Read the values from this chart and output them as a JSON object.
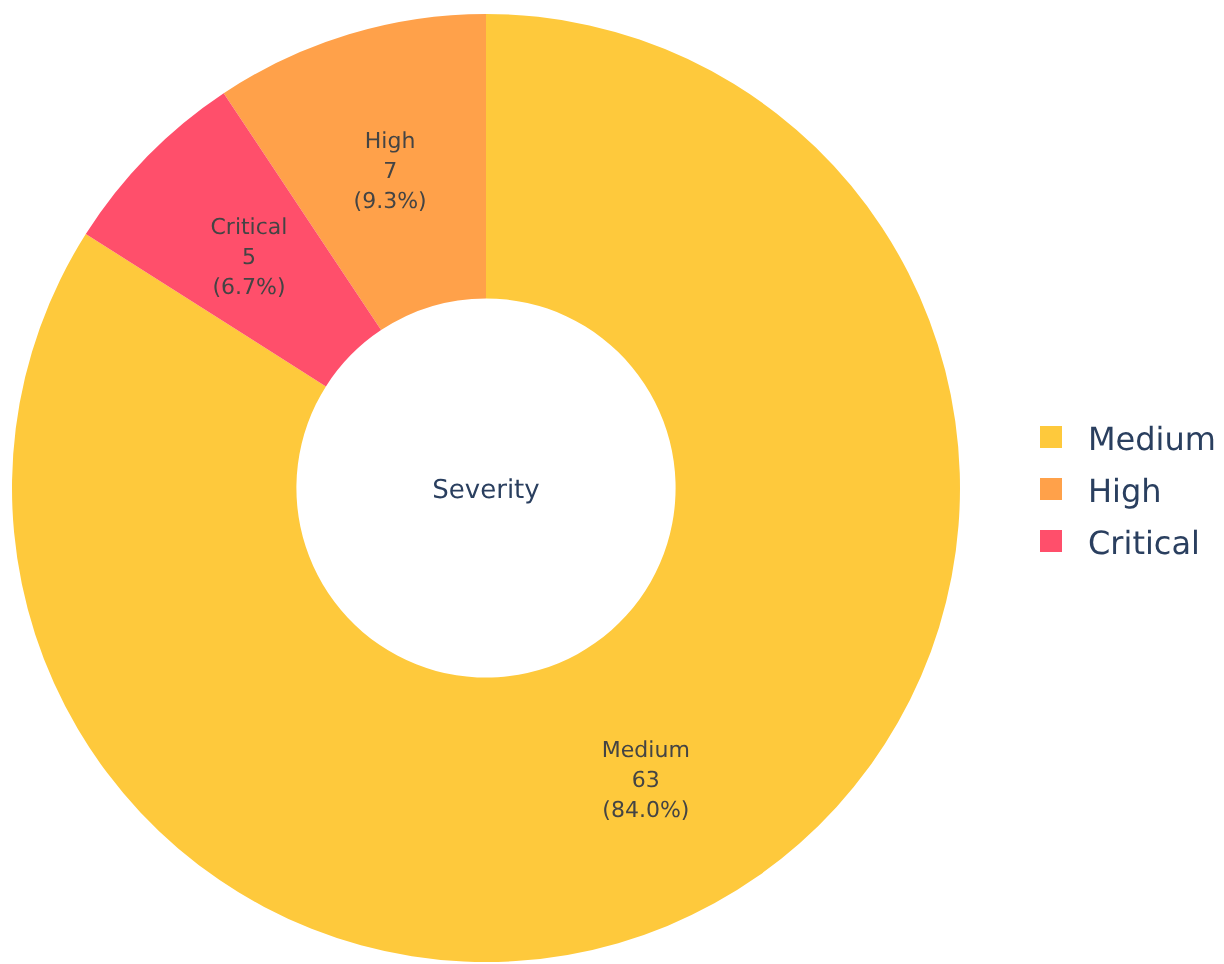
{
  "chart_data": {
    "type": "donut",
    "categories": [
      "Medium",
      "High",
      "Critical"
    ],
    "values": [
      63,
      7,
      5
    ],
    "colors": [
      "#fec93c",
      "#ffa14a",
      "#ff4f6b"
    ],
    "value_labels": [
      "63\n(84.0%)",
      "7\n(9.3%)",
      "5\n(6.7%)"
    ],
    "annotations": [
      "Severity"
    ],
    "legend": "right"
  }
}
